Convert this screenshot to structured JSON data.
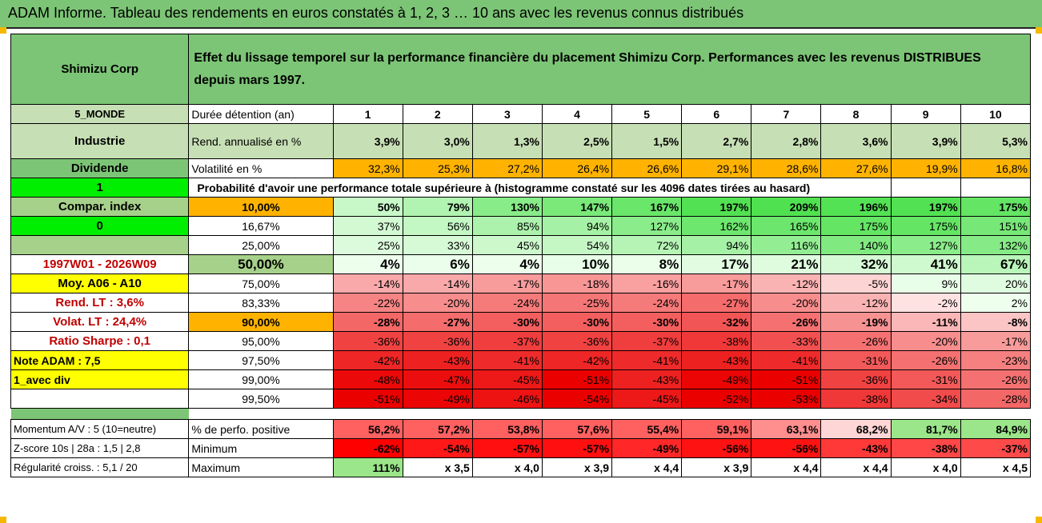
{
  "title": "ADAM Informe. Tableau des rendements en euros constatés à 1, 2, 3 … 10 ans avec les revenus connus distribués",
  "company": "Shimizu Corp",
  "header_text": "Effet du lissage temporel sur la performance financière du placement Shimizu Corp. Performances avec les revenus DISTRIBUES depuis mars 1997.",
  "side": {
    "region": "5_MONDE",
    "sector": "Industrie",
    "dividend_label": "Dividende",
    "dividend_value": "1",
    "compar_label": "Compar. index",
    "compar_value": "0",
    "period": "1997W01 - 2026W09",
    "moy": "Moy. A06 - A10",
    "rend_lt": "Rend. LT :    3,6%",
    "volat_lt": "Volat. LT :    24,4%",
    "sharpe": "Ratio Sharpe :    0,1",
    "note": "Note ADAM : 7,5",
    "div_mode": "1_avec div"
  },
  "labels": {
    "duree": "Durée détention (an)",
    "rend": "Rend. annualisé en %",
    "vol": "Volatilité en %",
    "proba": "Probabilité d'avoir une performance totale supérieure à (histogramme constaté sur les 4096 dates tirées au hasard)",
    "pct_pos": "% de perfo. positive",
    "minimum": "Minimum",
    "maximum": "Maximum"
  },
  "years": [
    "1",
    "2",
    "3",
    "4",
    "5",
    "6",
    "7",
    "8",
    "9",
    "10"
  ],
  "rend": [
    "3,9%",
    "3,0%",
    "1,3%",
    "2,5%",
    "1,5%",
    "2,7%",
    "2,8%",
    "3,6%",
    "3,9%",
    "5,3%"
  ],
  "vol": [
    "32,3%",
    "25,3%",
    "27,2%",
    "26,4%",
    "26,6%",
    "29,1%",
    "28,6%",
    "27,6%",
    "19,9%",
    "16,8%"
  ],
  "quantiles": [
    {
      "q": "10,00%",
      "v": [
        "50%",
        "79%",
        "130%",
        "147%",
        "167%",
        "197%",
        "209%",
        "196%",
        "197%",
        "175%"
      ]
    },
    {
      "q": "16,67%",
      "v": [
        "37%",
        "56%",
        "85%",
        "94%",
        "127%",
        "162%",
        "165%",
        "175%",
        "175%",
        "151%"
      ]
    },
    {
      "q": "25,00%",
      "v": [
        "25%",
        "33%",
        "45%",
        "54%",
        "72%",
        "94%",
        "116%",
        "140%",
        "127%",
        "132%"
      ]
    },
    {
      "q": "50,00%",
      "v": [
        "4%",
        "6%",
        "4%",
        "10%",
        "8%",
        "17%",
        "21%",
        "32%",
        "41%",
        "67%"
      ]
    },
    {
      "q": "75,00%",
      "v": [
        "-14%",
        "-14%",
        "-17%",
        "-18%",
        "-16%",
        "-17%",
        "-12%",
        "-5%",
        "9%",
        "20%"
      ]
    },
    {
      "q": "83,33%",
      "v": [
        "-22%",
        "-20%",
        "-24%",
        "-25%",
        "-24%",
        "-27%",
        "-20%",
        "-12%",
        "-2%",
        "2%"
      ]
    },
    {
      "q": "90,00%",
      "v": [
        "-28%",
        "-27%",
        "-30%",
        "-30%",
        "-30%",
        "-32%",
        "-26%",
        "-19%",
        "-11%",
        "-8%"
      ]
    },
    {
      "q": "95,00%",
      "v": [
        "-36%",
        "-36%",
        "-37%",
        "-36%",
        "-37%",
        "-38%",
        "-33%",
        "-26%",
        "-20%",
        "-17%"
      ]
    },
    {
      "q": "97,50%",
      "v": [
        "-42%",
        "-43%",
        "-41%",
        "-42%",
        "-41%",
        "-43%",
        "-41%",
        "-31%",
        "-26%",
        "-23%"
      ]
    },
    {
      "q": "99,00%",
      "v": [
        "-48%",
        "-47%",
        "-45%",
        "-51%",
        "-43%",
        "-49%",
        "-51%",
        "-36%",
        "-31%",
        "-26%"
      ]
    },
    {
      "q": "99,50%",
      "v": [
        "-51%",
        "-49%",
        "-46%",
        "-54%",
        "-45%",
        "-52%",
        "-53%",
        "-38%",
        "-34%",
        "-28%"
      ]
    }
  ],
  "bottom": {
    "momentum": "Momentum A/V : 5 (10=neutre)",
    "zscore": "Z-score 10s | 28a : 1,5 | 2,8",
    "regularite": "Régularité croiss. : 5,1 / 20",
    "pct_pos": [
      "56,2%",
      "57,2%",
      "53,8%",
      "57,6%",
      "55,4%",
      "59,1%",
      "63,1%",
      "68,2%",
      "81,7%",
      "84,9%"
    ],
    "minimum": [
      "-62%",
      "-54%",
      "-57%",
      "-57%",
      "-49%",
      "-56%",
      "-56%",
      "-43%",
      "-38%",
      "-37%"
    ],
    "maximum": [
      "111%",
      "x 3,5",
      "x 4,0",
      "x 3,9",
      "x 4,4",
      "x 3,9",
      "x 4,4",
      "x 4,4",
      "x 4,0",
      "x 4,5"
    ]
  },
  "colors": {
    "green_header": "#7cc576",
    "light_green": "#c7dfb5",
    "orange": "#ffb300",
    "bright_green": "#00ee00",
    "yellow": "#ffff00",
    "red": "#ff0000"
  }
}
